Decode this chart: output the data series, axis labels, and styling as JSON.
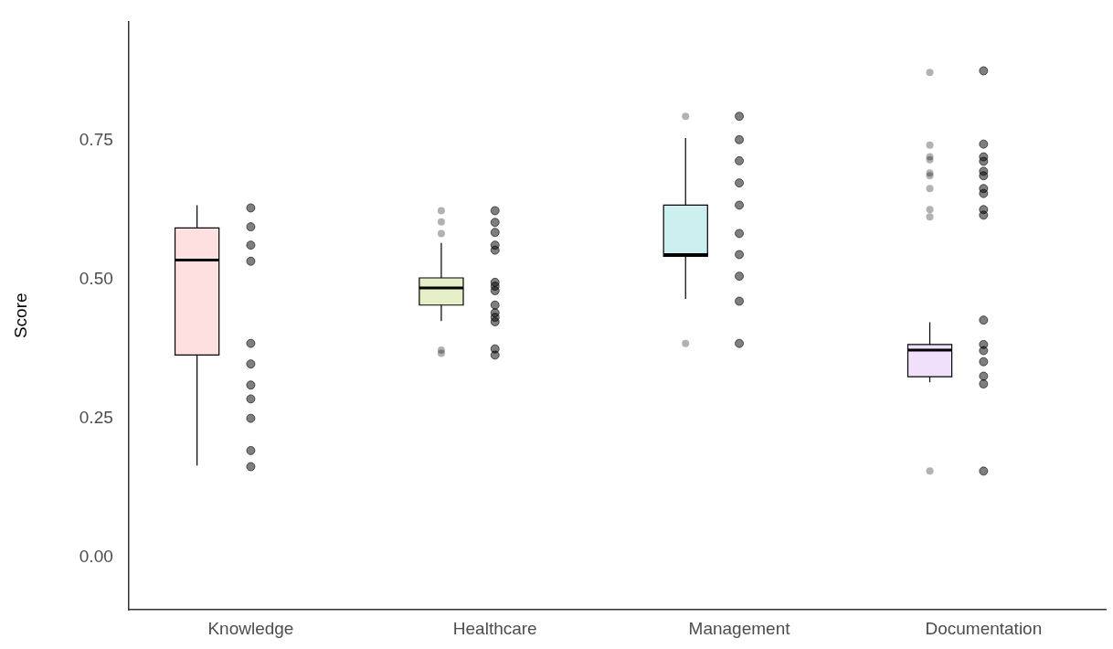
{
  "chart_data": {
    "type": "box",
    "ylabel": "Score",
    "categories": [
      "Knowledge",
      "Healthcare",
      "Management",
      "Documentation"
    ],
    "ylim": [
      -0.095,
      0.965
    ],
    "yticks": [
      {
        "value": 0,
        "label": "0.00"
      },
      {
        "value": 0.25,
        "label": "0.25"
      },
      {
        "value": 0.5,
        "label": "0.50"
      },
      {
        "value": 0.75,
        "label": "0.75"
      }
    ],
    "grid": false,
    "legend": false,
    "series": [
      {
        "type": "box",
        "colors": [
          "#ffe0e0",
          "#e6f0c8",
          "#ccf0f0",
          "#f0e0fc"
        ],
        "boxes": [
          {
            "low": 0.165,
            "q1": 0.364,
            "median": 0.535,
            "q3": 0.593,
            "high": 0.634
          },
          {
            "low": 0.425,
            "q1": 0.454,
            "median": 0.485,
            "q3": 0.503,
            "high": 0.566,
            "outliers": [
              0.624,
              0.604,
              0.583,
              0.373,
              0.367
            ]
          },
          {
            "low": 0.465,
            "q1": 0.542,
            "median": 0.545,
            "q3": 0.634,
            "high": 0.755,
            "outliers": [
              0.794,
              0.385
            ]
          },
          {
            "low": 0.315,
            "q1": 0.325,
            "median": 0.373,
            "q3": 0.383,
            "high": 0.423,
            "outliers": [
              0.873,
              0.742,
              0.721,
              0.716,
              0.692,
              0.687,
              0.664,
              0.626,
              0.613,
              0.155
            ]
          }
        ]
      },
      {
        "type": "scatter",
        "color": "#000000",
        "marker": "circle",
        "x": [
          "Knowledge",
          "Knowledge",
          "Knowledge",
          "Knowledge",
          "Knowledge",
          "Knowledge",
          "Knowledge",
          "Knowledge",
          "Knowledge",
          "Knowledge",
          "Knowledge",
          "Knowledge",
          "Healthcare",
          "Healthcare",
          "Healthcare",
          "Healthcare",
          "Healthcare",
          "Healthcare",
          "Healthcare",
          "Healthcare",
          "Healthcare",
          "Healthcare",
          "Healthcare",
          "Healthcare",
          "Healthcare",
          "Healthcare",
          "Management",
          "Management",
          "Management",
          "Management",
          "Management",
          "Management",
          "Management",
          "Management",
          "Management",
          "Management",
          "Documentation",
          "Documentation",
          "Documentation",
          "Documentation",
          "Documentation",
          "Documentation",
          "Documentation",
          "Documentation",
          "Documentation",
          "Documentation",
          "Documentation",
          "Documentation",
          "Documentation",
          "Documentation",
          "Documentation",
          "Documentation",
          "Documentation"
        ],
        "values": [
          null,
          0.629,
          0.595,
          0.562,
          0.533,
          0.385,
          0.348,
          0.31,
          0.285,
          0.25,
          0.192,
          0.163,
          0.624,
          0.603,
          0.585,
          0.562,
          0.553,
          0.495,
          0.488,
          0.48,
          0.454,
          0.44,
          0.432,
          0.424,
          0.375,
          0.364,
          0.794,
          0.752,
          0.714,
          0.674,
          0.634,
          0.583,
          0.545,
          0.506,
          0.461,
          0.385,
          0.876,
          0.744,
          0.721,
          0.713,
          0.695,
          0.687,
          0.664,
          0.655,
          0.626,
          0.616,
          0.427,
          0.383,
          0.372,
          0.352,
          0.326,
          0.312,
          0.155
        ]
      }
    ]
  }
}
